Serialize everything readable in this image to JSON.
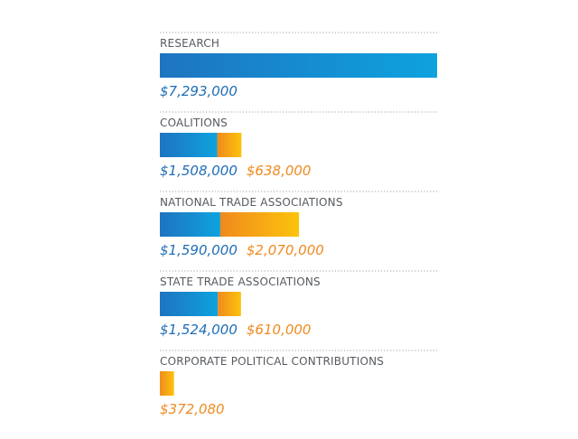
{
  "chart_data": {
    "type": "bar",
    "orientation": "horizontal",
    "stacked": true,
    "categories": [
      "RESEARCH",
      "COALITIONS",
      "NATIONAL TRADE ASSOCIATIONS",
      "STATE TRADE ASSOCIATIONS",
      "CORPORATE POLITICAL CONTRIBUTIONS"
    ],
    "series": [
      {
        "color": "#1e74c0",
        "color_end": "#0ea2de",
        "values": [
          7293000,
          1508000,
          1590000,
          1524000,
          0
        ],
        "labels": [
          "$7,293,000",
          "$1,508,000",
          "$1,590,000",
          "$1,524,000",
          ""
        ]
      },
      {
        "color": "#f08a1e",
        "color_end": "#fcc30c",
        "values": [
          0,
          638000,
          2070000,
          610000,
          372080
        ],
        "labels": [
          "",
          "$638,000",
          "$2,070,000",
          "$610,000",
          "$372,080"
        ]
      }
    ],
    "separator": "dotted",
    "separator_color": "#9aa0a6",
    "label_color": "#555a60",
    "value_colors": [
      "#1e6db5",
      "#ee8a1f"
    ]
  }
}
